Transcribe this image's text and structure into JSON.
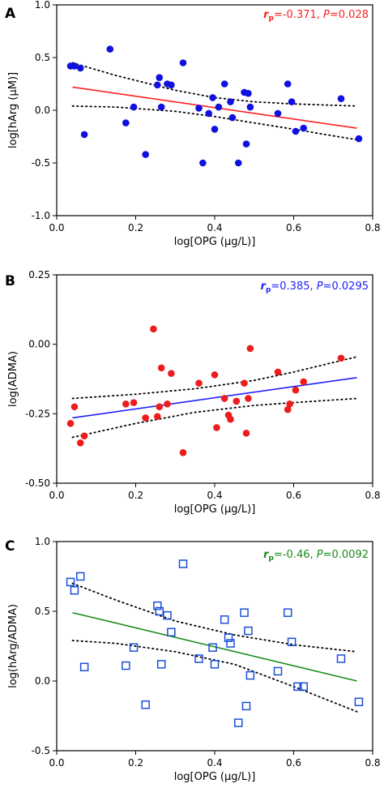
{
  "chart_data": [
    {
      "panel_label": "A",
      "type": "scatter",
      "marker": "filled-circle",
      "marker_color": "#1010e0",
      "fit_color": "#ff2020",
      "xlabel": "log[OPG (µg/L)]",
      "ylabel": "log[hArg (µM)]",
      "xlim": [
        0,
        0.8
      ],
      "ylim": [
        -1.0,
        1.0
      ],
      "xticks": [
        "0.0",
        "0.2",
        "0.4",
        "0.6",
        "0.8"
      ],
      "yticks": [
        "-1.0",
        "-0.5",
        "0.0",
        "0.5",
        "1.0"
      ],
      "stat_r": "=-0.371, ",
      "stat_p": "=0.028",
      "points": [
        [
          0.035,
          0.42
        ],
        [
          0.045,
          0.42
        ],
        [
          0.06,
          0.4
        ],
        [
          0.07,
          -0.23
        ],
        [
          0.135,
          0.58
        ],
        [
          0.175,
          -0.12
        ],
        [
          0.195,
          0.03
        ],
        [
          0.225,
          -0.42
        ],
        [
          0.255,
          0.24
        ],
        [
          0.26,
          0.31
        ],
        [
          0.265,
          0.03
        ],
        [
          0.28,
          0.25
        ],
        [
          0.29,
          0.24
        ],
        [
          0.32,
          0.45
        ],
        [
          0.36,
          0.02
        ],
        [
          0.37,
          -0.5
        ],
        [
          0.385,
          -0.03
        ],
        [
          0.395,
          0.12
        ],
        [
          0.4,
          -0.18
        ],
        [
          0.41,
          0.03
        ],
        [
          0.425,
          0.25
        ],
        [
          0.44,
          0.08
        ],
        [
          0.445,
          -0.07
        ],
        [
          0.46,
          -0.5
        ],
        [
          0.475,
          0.17
        ],
        [
          0.48,
          -0.32
        ],
        [
          0.485,
          0.16
        ],
        [
          0.49,
          0.03
        ],
        [
          0.56,
          -0.03
        ],
        [
          0.585,
          0.25
        ],
        [
          0.595,
          0.08
        ],
        [
          0.605,
          -0.2
        ],
        [
          0.625,
          -0.17
        ],
        [
          0.72,
          0.11
        ],
        [
          0.765,
          -0.27
        ]
      ],
      "fit": [
        [
          0.04,
          0.22
        ],
        [
          0.76,
          -0.17
        ]
      ],
      "ci_upper": [
        [
          0.04,
          0.45
        ],
        [
          0.15,
          0.33
        ],
        [
          0.3,
          0.19
        ],
        [
          0.4,
          0.12
        ],
        [
          0.5,
          0.08
        ],
        [
          0.6,
          0.06
        ],
        [
          0.76,
          0.04
        ]
      ],
      "ci_lower": [
        [
          0.04,
          0.04
        ],
        [
          0.15,
          0.03
        ],
        [
          0.3,
          -0.01
        ],
        [
          0.4,
          -0.06
        ],
        [
          0.5,
          -0.12
        ],
        [
          0.6,
          -0.18
        ],
        [
          0.76,
          -0.28
        ]
      ]
    },
    {
      "panel_label": "B",
      "type": "scatter",
      "marker": "filled-circle",
      "marker_color": "#ee1c1c",
      "fit_color": "#2020ff",
      "xlabel": "log[OPG (µg/L)]",
      "ylabel": "log(ADMA)",
      "xlim": [
        0,
        0.8
      ],
      "ylim": [
        -0.5,
        0.25
      ],
      "xticks": [
        "0.0",
        "0.2",
        "0.4",
        "0.6",
        "0.8"
      ],
      "yticks": [
        "-0.50",
        "-0.25",
        "0.00",
        "0.25"
      ],
      "stat_r": "=0.385, ",
      "stat_p": "=0.0295",
      "points": [
        [
          0.035,
          -0.285
        ],
        [
          0.045,
          -0.225
        ],
        [
          0.06,
          -0.355
        ],
        [
          0.07,
          -0.33
        ],
        [
          0.175,
          -0.215
        ],
        [
          0.195,
          -0.21
        ],
        [
          0.225,
          -0.265
        ],
        [
          0.245,
          0.055
        ],
        [
          0.255,
          -0.26
        ],
        [
          0.26,
          -0.225
        ],
        [
          0.265,
          -0.085
        ],
        [
          0.28,
          -0.215
        ],
        [
          0.29,
          -0.105
        ],
        [
          0.32,
          -0.39
        ],
        [
          0.36,
          -0.14
        ],
        [
          0.4,
          -0.11
        ],
        [
          0.405,
          -0.3
        ],
        [
          0.425,
          -0.195
        ],
        [
          0.435,
          -0.255
        ],
        [
          0.44,
          -0.27
        ],
        [
          0.455,
          -0.205
        ],
        [
          0.475,
          -0.14
        ],
        [
          0.48,
          -0.32
        ],
        [
          0.485,
          -0.195
        ],
        [
          0.49,
          -0.015
        ],
        [
          0.56,
          -0.1
        ],
        [
          0.585,
          -0.235
        ],
        [
          0.59,
          -0.215
        ],
        [
          0.605,
          -0.165
        ],
        [
          0.625,
          -0.135
        ],
        [
          0.72,
          -0.05
        ]
      ],
      "fit": [
        [
          0.04,
          -0.265
        ],
        [
          0.76,
          -0.12
        ]
      ],
      "ci_upper": [
        [
          0.04,
          -0.195
        ],
        [
          0.2,
          -0.18
        ],
        [
          0.35,
          -0.16
        ],
        [
          0.5,
          -0.13
        ],
        [
          0.6,
          -0.1
        ],
        [
          0.76,
          -0.045
        ]
      ],
      "ci_lower": [
        [
          0.04,
          -0.335
        ],
        [
          0.2,
          -0.285
        ],
        [
          0.35,
          -0.245
        ],
        [
          0.5,
          -0.22
        ],
        [
          0.6,
          -0.21
        ],
        [
          0.76,
          -0.195
        ]
      ]
    },
    {
      "panel_label": "C",
      "type": "scatter",
      "marker": "open-square",
      "marker_color": "#1a4fd8",
      "fit_color": "#1a8c1a",
      "xlabel": "log[OPG (µg/L)]",
      "ylabel": "log(hArg/ADMA)",
      "xlim": [
        0,
        0.8
      ],
      "ylim": [
        -0.5,
        1.0
      ],
      "xticks": [
        "0.0",
        "0.2",
        "0.4",
        "0.6",
        "0.8"
      ],
      "yticks": [
        "-0.5",
        "0.0",
        "0.5",
        "1.0"
      ],
      "stat_r": "=-0.46, ",
      "stat_p": "=0.0092",
      "points": [
        [
          0.035,
          0.71
        ],
        [
          0.045,
          0.65
        ],
        [
          0.06,
          0.75
        ],
        [
          0.07,
          0.1
        ],
        [
          0.175,
          0.11
        ],
        [
          0.195,
          0.24
        ],
        [
          0.225,
          -0.17
        ],
        [
          0.255,
          0.54
        ],
        [
          0.26,
          0.5
        ],
        [
          0.265,
          0.12
        ],
        [
          0.28,
          0.47
        ],
        [
          0.29,
          0.35
        ],
        [
          0.32,
          0.84
        ],
        [
          0.36,
          0.16
        ],
        [
          0.395,
          0.24
        ],
        [
          0.4,
          0.12
        ],
        [
          0.425,
          0.44
        ],
        [
          0.435,
          0.31
        ],
        [
          0.44,
          0.27
        ],
        [
          0.46,
          -0.3
        ],
        [
          0.475,
          0.49
        ],
        [
          0.48,
          -0.18
        ],
        [
          0.485,
          0.36
        ],
        [
          0.49,
          0.04
        ],
        [
          0.56,
          0.07
        ],
        [
          0.585,
          0.49
        ],
        [
          0.595,
          0.28
        ],
        [
          0.61,
          -0.04
        ],
        [
          0.625,
          -0.04
        ],
        [
          0.72,
          0.16
        ],
        [
          0.765,
          -0.15
        ]
      ],
      "fit": [
        [
          0.04,
          0.49
        ],
        [
          0.76,
          0.0
        ]
      ],
      "ci_upper": [
        [
          0.04,
          0.7
        ],
        [
          0.15,
          0.58
        ],
        [
          0.3,
          0.43
        ],
        [
          0.45,
          0.33
        ],
        [
          0.6,
          0.26
        ],
        [
          0.76,
          0.21
        ]
      ],
      "ci_lower": [
        [
          0.04,
          0.29
        ],
        [
          0.15,
          0.27
        ],
        [
          0.3,
          0.21
        ],
        [
          0.45,
          0.12
        ],
        [
          0.6,
          -0.04
        ],
        [
          0.76,
          -0.22
        ]
      ]
    }
  ]
}
